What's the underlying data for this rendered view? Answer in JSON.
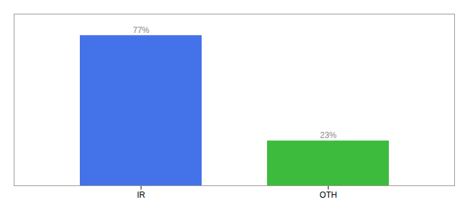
{
  "chart_data": {
    "type": "bar",
    "categories": [
      "IR",
      "OTH"
    ],
    "values": [
      77,
      23
    ],
    "colors": [
      "#4472e8",
      "#3dbb3d"
    ],
    "ylim": [
      0,
      88
    ],
    "data_labels": true,
    "value_labels": [
      "77%",
      "23%"
    ],
    "tick_labels": "x"
  }
}
